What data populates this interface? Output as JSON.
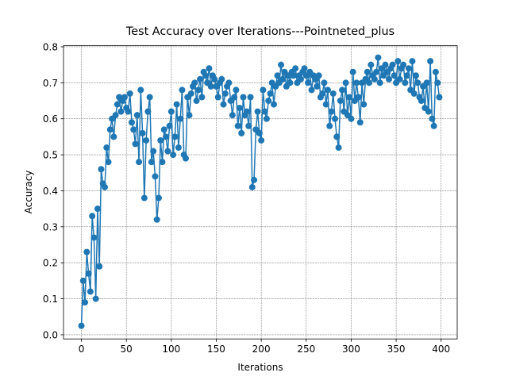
{
  "chart_data": {
    "type": "line",
    "title": "Test Accuracy over Iterations---Pointneted_plus",
    "x_label": "Iterations",
    "y_label": "Accuracy",
    "x": [
      0,
      2,
      4,
      6,
      8,
      10,
      12,
      14,
      16,
      18,
      20,
      22,
      24,
      26,
      28,
      30,
      32,
      34,
      36,
      38,
      40,
      42,
      44,
      46,
      48,
      50,
      52,
      54,
      56,
      58,
      60,
      62,
      64,
      66,
      68,
      70,
      72,
      74,
      76,
      78,
      80,
      82,
      84,
      86,
      88,
      90,
      92,
      94,
      96,
      98,
      100,
      102,
      104,
      106,
      108,
      110,
      112,
      114,
      116,
      118,
      120,
      122,
      124,
      126,
      128,
      130,
      132,
      134,
      136,
      138,
      140,
      142,
      144,
      146,
      148,
      150,
      152,
      154,
      156,
      158,
      160,
      162,
      164,
      166,
      168,
      170,
      172,
      174,
      176,
      178,
      180,
      182,
      184,
      186,
      188,
      190,
      192,
      194,
      196,
      198,
      200,
      202,
      204,
      206,
      208,
      210,
      212,
      214,
      216,
      218,
      220,
      222,
      224,
      226,
      228,
      230,
      232,
      234,
      236,
      238,
      240,
      242,
      244,
      246,
      248,
      250,
      252,
      254,
      256,
      258,
      260,
      262,
      264,
      266,
      268,
      270,
      272,
      274,
      276,
      278,
      280,
      282,
      284,
      286,
      288,
      290,
      292,
      294,
      296,
      298,
      300,
      302,
      304,
      306,
      308,
      310,
      312,
      314,
      316,
      318,
      320,
      322,
      324,
      326,
      328,
      330,
      332,
      334,
      336,
      338,
      340,
      342,
      344,
      346,
      348,
      350,
      352,
      354,
      356,
      358,
      360,
      362,
      364,
      366,
      368,
      370,
      372,
      374,
      376,
      378,
      380,
      382,
      384,
      386,
      388,
      390,
      392,
      394,
      396,
      398
    ],
    "series": [
      {
        "name": "Accuracy",
        "color": "#1f77b4",
        "values": [
          0.025,
          0.15,
          0.09,
          0.23,
          0.17,
          0.12,
          0.33,
          0.27,
          0.1,
          0.35,
          0.19,
          0.46,
          0.42,
          0.41,
          0.52,
          0.48,
          0.57,
          0.6,
          0.55,
          0.61,
          0.64,
          0.66,
          0.62,
          0.65,
          0.66,
          0.63,
          0.62,
          0.67,
          0.59,
          0.57,
          0.53,
          0.61,
          0.48,
          0.68,
          0.56,
          0.38,
          0.54,
          0.62,
          0.66,
          0.48,
          0.51,
          0.44,
          0.32,
          0.38,
          0.54,
          0.48,
          0.57,
          0.55,
          0.51,
          0.58,
          0.62,
          0.5,
          0.55,
          0.64,
          0.52,
          0.6,
          0.68,
          0.5,
          0.49,
          0.66,
          0.61,
          0.67,
          0.69,
          0.7,
          0.65,
          0.68,
          0.71,
          0.66,
          0.73,
          0.72,
          0.7,
          0.74,
          0.69,
          0.72,
          0.71,
          0.69,
          0.66,
          0.7,
          0.71,
          0.64,
          0.67,
          0.69,
          0.7,
          0.65,
          0.61,
          0.66,
          0.68,
          0.58,
          0.63,
          0.56,
          0.66,
          0.61,
          0.62,
          0.58,
          0.66,
          0.41,
          0.43,
          0.57,
          0.62,
          0.56,
          0.54,
          0.68,
          0.62,
          0.6,
          0.65,
          0.67,
          0.7,
          0.64,
          0.69,
          0.72,
          0.7,
          0.75,
          0.71,
          0.73,
          0.69,
          0.72,
          0.7,
          0.73,
          0.72,
          0.74,
          0.7,
          0.72,
          0.71,
          0.73,
          0.74,
          0.72,
          0.7,
          0.73,
          0.68,
          0.72,
          0.71,
          0.69,
          0.72,
          0.66,
          0.67,
          0.7,
          0.64,
          0.68,
          0.58,
          0.62,
          0.67,
          0.6,
          0.55,
          0.52,
          0.65,
          0.68,
          0.62,
          0.7,
          0.61,
          0.66,
          0.6,
          0.73,
          0.65,
          0.7,
          0.66,
          0.59,
          0.7,
          0.64,
          0.71,
          0.73,
          0.7,
          0.75,
          0.72,
          0.71,
          0.73,
          0.77,
          0.7,
          0.74,
          0.72,
          0.75,
          0.73,
          0.71,
          0.74,
          0.75,
          0.72,
          0.7,
          0.76,
          0.71,
          0.74,
          0.75,
          0.7,
          0.72,
          0.74,
          0.68,
          0.76,
          0.67,
          0.72,
          0.7,
          0.66,
          0.65,
          0.69,
          0.63,
          0.7,
          0.62,
          0.76,
          0.6,
          0.58,
          0.73,
          0.7,
          0.66
        ]
      }
    ],
    "xlim": [
      -19.9,
      417.9
    ],
    "ylim": [
      -0.0115,
      0.803
    ],
    "xticks": [
      0,
      50,
      100,
      150,
      200,
      250,
      300,
      350,
      400
    ],
    "yticks": [
      {
        "value": 0,
        "label": "0.0"
      },
      0.1,
      0.2,
      0.3,
      0.4,
      0.5,
      0.6,
      0.7,
      0.8
    ],
    "grid": true
  }
}
